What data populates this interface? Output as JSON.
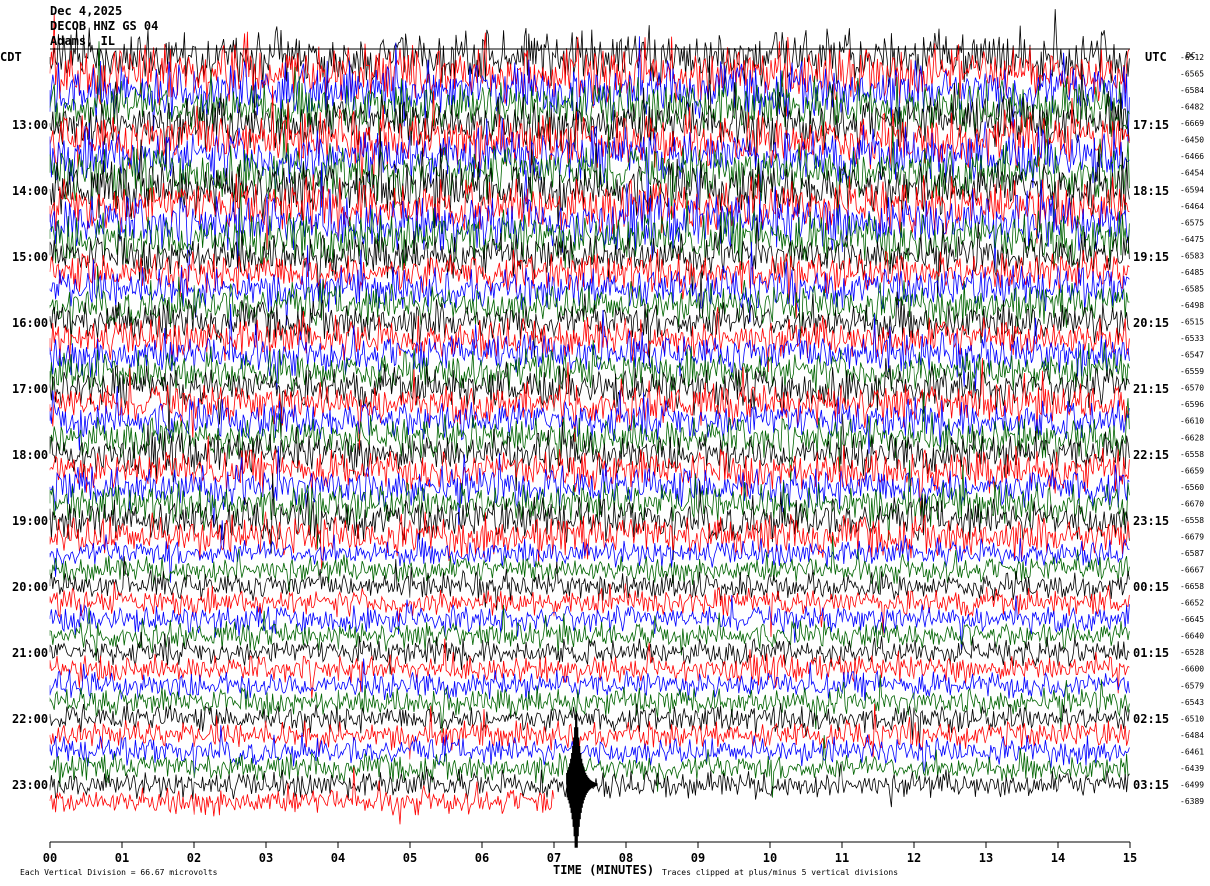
{
  "header": {
    "date": "Dec 4,2025",
    "station": "DECOB HNZ GS 04",
    "location": "Adams, IL"
  },
  "labels": {
    "left_tz": "CDT",
    "right_tz": "UTC",
    "dc": "DC"
  },
  "footer": {
    "scale_note": "Each Vertical Division = 66.67 microvolts",
    "xlabel": "TIME (MINUTES)",
    "clip_note": "Traces clipped at plus/minus 5 vertical divisions"
  },
  "chart_data": {
    "type": "line",
    "title": "",
    "xlabel": "TIME (MINUTES)",
    "xlim": [
      0,
      15
    ],
    "x_ticks": [
      "00",
      "01",
      "02",
      "03",
      "04",
      "05",
      "06",
      "07",
      "08",
      "09",
      "10",
      "11",
      "12",
      "13",
      "14",
      "15"
    ],
    "trace_colors": [
      "#000000",
      "#ff0000",
      "#0000ff",
      "#006400"
    ],
    "left_time_labels": [
      "13:00",
      "14:00",
      "15:00",
      "16:00",
      "17:00",
      "18:00",
      "19:00",
      "20:00",
      "21:00",
      "22:00",
      "23:00"
    ],
    "right_time_labels": [
      "17:15",
      "18:15",
      "19:15",
      "20:15",
      "21:15",
      "22:15",
      "23:15",
      "00:15",
      "01:15",
      "02:15",
      "03:15"
    ],
    "dc_offsets": [
      "-6512",
      "-6565",
      "-6584",
      "-6482",
      "-6669",
      "-6450",
      "-6466",
      "-6454",
      "-6594",
      "-6464",
      "-6575",
      "-6475",
      "-6583",
      "-6485",
      "-6585",
      "-6498",
      "-6515",
      "-6533",
      "-6547",
      "-6559",
      "-6570",
      "-6596",
      "-6610",
      "-6628",
      "-6558",
      "-6659",
      "-6560",
      "-6670",
      "-6558",
      "-6679",
      "-6587",
      "-6667",
      "-6658",
      "-6652",
      "-6645",
      "-6640",
      "-6528",
      "-6600",
      "-6579",
      "-6543",
      "-6510",
      "-6484",
      "-6461",
      "-6439",
      "-6499",
      "-6389"
    ],
    "clip_divisions": 5,
    "microvolts_per_division": 66.67,
    "last_trace_end_minute": 7.0,
    "event_minute": 7.35
  }
}
